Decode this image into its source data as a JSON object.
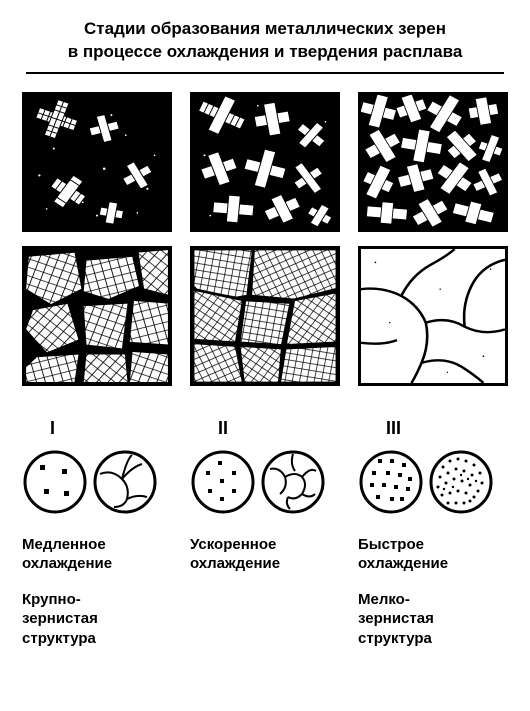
{
  "title_line1": "Стадии образования металлических зерен",
  "title_line2": "в процессе охлаждения и твердения расплава",
  "colors": {
    "bg": "#ffffff",
    "ink": "#000000",
    "panel_border": "#000000",
    "circle_stroke": "#000000"
  },
  "panels": {
    "type": "infographic",
    "rows": 2,
    "cols": 3,
    "cell_border_width": 3,
    "description": "Top row: black melt background with white cross-shaped dendritic crystals increasing in density left→right. Bottom row: grains grown larger; rightmost is fully solidified white with black grain boundaries."
  },
  "columns": [
    {
      "roman": "I",
      "circle_left": {
        "type": "sparse-nuclei",
        "dot_count": 4
      },
      "circle_right": {
        "type": "coarse-grains"
      },
      "cooling_label": "Медленное\nохлаждение",
      "structure_label": "Крупно-\nзернистая\nструктура"
    },
    {
      "roman": "II",
      "circle_left": {
        "type": "medium-nuclei",
        "dot_count": 7
      },
      "circle_right": {
        "type": "medium-grains"
      },
      "cooling_label": "Ускоренное\nохлаждение",
      "structure_label": ""
    },
    {
      "roman": "III",
      "circle_left": {
        "type": "dense-nuclei",
        "dot_count": 14
      },
      "circle_right": {
        "type": "fine-grains"
      },
      "cooling_label": "Быстрое\nохлаждение",
      "structure_label": "Мелко-\nзернистая\nструктура"
    }
  ],
  "typography": {
    "title_fontsize": 17,
    "roman_fontsize": 18,
    "label_fontsize": 15,
    "font_weight": "bold"
  },
  "circle": {
    "diameter": 64,
    "stroke_width": 3
  }
}
